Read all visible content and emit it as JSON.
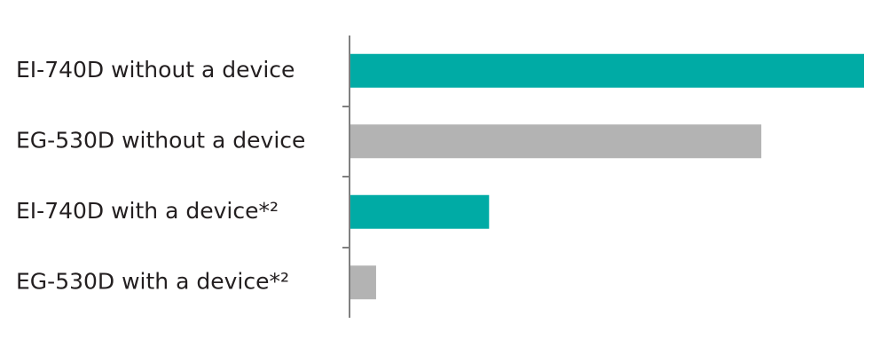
{
  "chart_data": {
    "type": "bar",
    "orientation": "horizontal",
    "categories": [
      "EI-740D without a device",
      "EG-530D without a device",
      "EI-740D with a device*²",
      "EG-530D with a device*²"
    ],
    "values": [
      100,
      80,
      27,
      5
    ],
    "colors": [
      "#00aba5",
      "#b3b3b3",
      "#00aba5",
      "#b3b3b3"
    ],
    "xlim": [
      0,
      100
    ]
  }
}
